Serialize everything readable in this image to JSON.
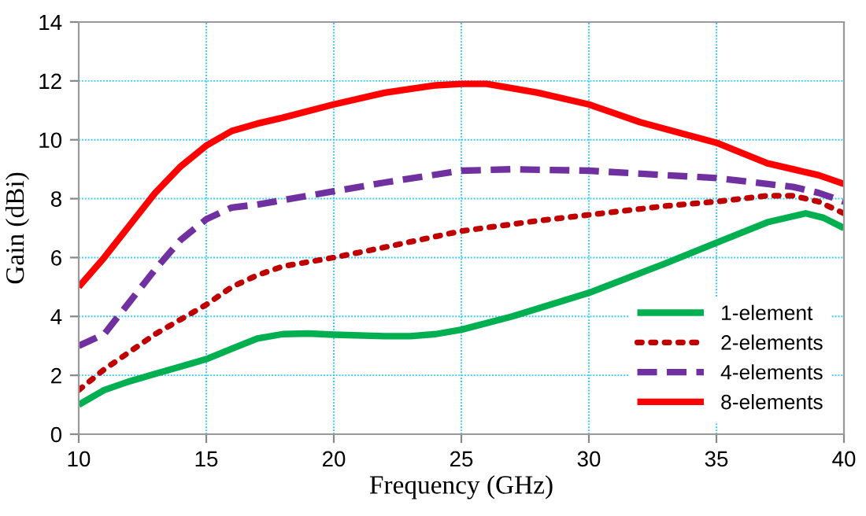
{
  "chart_data": {
    "type": "line",
    "xlabel": "Frequency (GHz)",
    "ylabel": "Gain (dBi)",
    "xlim": [
      10,
      40
    ],
    "xticks": [
      10,
      15,
      20,
      25,
      30,
      35,
      40
    ],
    "ylim": [
      0,
      14
    ],
    "yticks": [
      0,
      2,
      4,
      6,
      8,
      10,
      12,
      14
    ],
    "grid": true,
    "legend": "bottom right",
    "marker": "none",
    "series": [
      {
        "name": "1-element",
        "color": "#00b050",
        "line_style": "solid",
        "x": [
          10,
          11,
          12,
          13,
          14,
          15,
          16,
          17,
          18,
          19,
          20,
          22,
          23,
          24,
          25,
          27,
          30,
          33,
          35,
          37,
          38.5,
          39.2,
          40
        ],
        "values": [
          1.0,
          1.5,
          1.8,
          2.05,
          2.3,
          2.55,
          2.9,
          3.25,
          3.4,
          3.42,
          3.38,
          3.33,
          3.33,
          3.4,
          3.55,
          4.0,
          4.8,
          5.8,
          6.5,
          7.2,
          7.5,
          7.35,
          7.0
        ]
      },
      {
        "name": "2-elements",
        "color": "#c00000",
        "line_style": "dotted",
        "x": [
          10,
          11,
          12,
          13,
          14,
          15,
          16,
          17,
          18,
          20,
          22,
          25,
          28,
          30,
          33,
          35,
          37,
          38,
          39,
          40
        ],
        "values": [
          1.5,
          2.2,
          2.8,
          3.4,
          3.9,
          4.4,
          5.0,
          5.4,
          5.7,
          6.0,
          6.35,
          6.9,
          7.25,
          7.45,
          7.75,
          7.9,
          8.1,
          8.1,
          7.9,
          7.5
        ]
      },
      {
        "name": "4-elements",
        "color": "#7030a0",
        "line_style": "dashed",
        "x": [
          10,
          11,
          12,
          13,
          14,
          15,
          16,
          17,
          18,
          20,
          22,
          25,
          27,
          30,
          33,
          35,
          37,
          38,
          39,
          40
        ],
        "values": [
          3.0,
          3.4,
          4.5,
          5.6,
          6.6,
          7.3,
          7.7,
          7.8,
          7.95,
          8.25,
          8.55,
          8.95,
          9.0,
          8.95,
          8.8,
          8.7,
          8.5,
          8.4,
          8.2,
          7.9
        ]
      },
      {
        "name": "8-elements",
        "color": "#ff0000",
        "line_style": "solid",
        "x": [
          10,
          11,
          12,
          13,
          14,
          15,
          16,
          17,
          18,
          20,
          22,
          24,
          25,
          26,
          28,
          30,
          32,
          35,
          37,
          39,
          40
        ],
        "values": [
          5.0,
          6.0,
          7.1,
          8.2,
          9.1,
          9.8,
          10.3,
          10.55,
          10.75,
          11.2,
          11.6,
          11.85,
          11.9,
          11.9,
          11.6,
          11.2,
          10.6,
          9.9,
          9.2,
          8.8,
          8.5
        ]
      }
    ]
  }
}
